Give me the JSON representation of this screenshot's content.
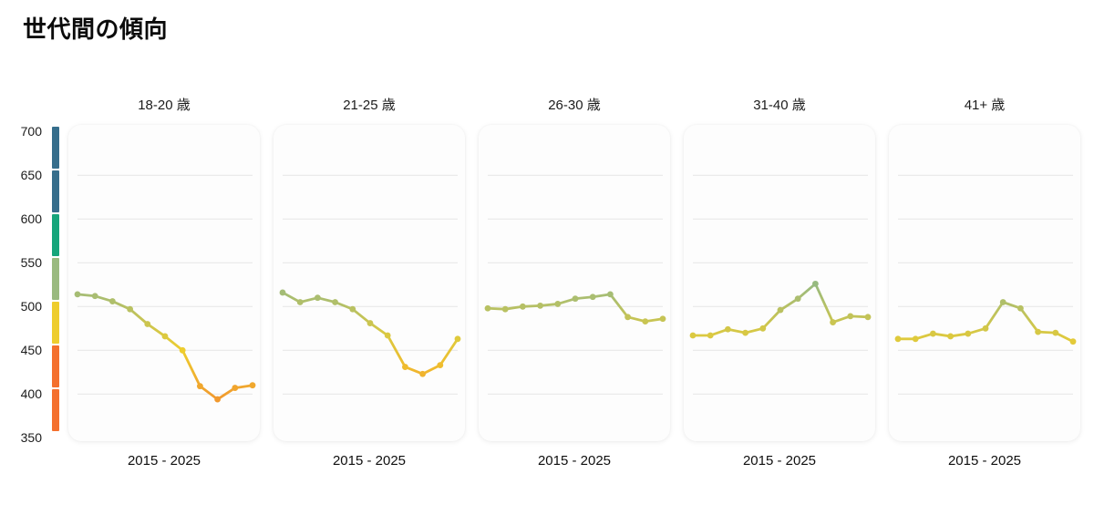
{
  "title": "世代間の傾向",
  "colors": {
    "background": "#ffffff",
    "card_background": "#fdfdfd",
    "gridline": "#e8e8e8",
    "text": "#1c1c1c",
    "scale_blue": "#366e8c",
    "scale_teal": "#16a57b",
    "scale_sage": "#9aba80",
    "scale_yellow": "#eecd2e",
    "scale_orange": "#f4702e"
  },
  "chart_data": {
    "type": "line",
    "layout": "small-multiples",
    "title": "世代間の傾向",
    "x_axis_label": "2015 - 2025",
    "x": [
      2015,
      2016,
      2017,
      2018,
      2019,
      2020,
      2021,
      2022,
      2023,
      2024,
      2025
    ],
    "ylim": [
      350,
      700
    ],
    "y_ticks": [
      700,
      650,
      600,
      550,
      500,
      450,
      400,
      350
    ],
    "grid_values": [
      650,
      600,
      550,
      500,
      450,
      400
    ],
    "grid": true,
    "legend_position": "left-colorbar",
    "color_scale": {
      "stops": [
        [
          350,
          "#f4702e"
        ],
        [
          450,
          "#eecd2e"
        ],
        [
          525,
          "#9aba80"
        ],
        [
          575,
          "#16a57b"
        ],
        [
          640,
          "#366e8c"
        ],
        [
          700,
          "#366e8c"
        ]
      ]
    },
    "colorbar_segments": [
      {
        "range": "650-700",
        "color": "#366e8c"
      },
      {
        "range": "600-650",
        "color": "#366e8c"
      },
      {
        "range": "550-600",
        "color": "#16a57b"
      },
      {
        "range": "500-550",
        "color": "#9aba80"
      },
      {
        "range": "450-500",
        "color": "#eecd2e"
      },
      {
        "range": "400-450",
        "color": "#f4702e"
      },
      {
        "range": "350-400",
        "color": "#f4702e"
      }
    ],
    "panels": [
      {
        "title": "18-20 歳",
        "values": [
          514,
          512,
          506,
          497,
          480,
          466,
          450,
          409,
          394,
          407,
          410
        ]
      },
      {
        "title": "21-25 歳",
        "values": [
          516,
          505,
          510,
          505,
          497,
          481,
          467,
          431,
          423,
          433,
          463
        ]
      },
      {
        "title": "26-30 歳",
        "values": [
          498,
          497,
          500,
          501,
          503,
          509,
          511,
          514,
          488,
          483,
          486
        ]
      },
      {
        "title": "31-40 歳",
        "values": [
          467,
          467,
          474,
          470,
          475,
          496,
          509,
          526,
          482,
          489,
          488
        ]
      },
      {
        "title": "41+ 歳",
        "values": [
          463,
          463,
          469,
          466,
          469,
          475,
          505,
          498,
          471,
          470,
          460
        ]
      }
    ]
  }
}
